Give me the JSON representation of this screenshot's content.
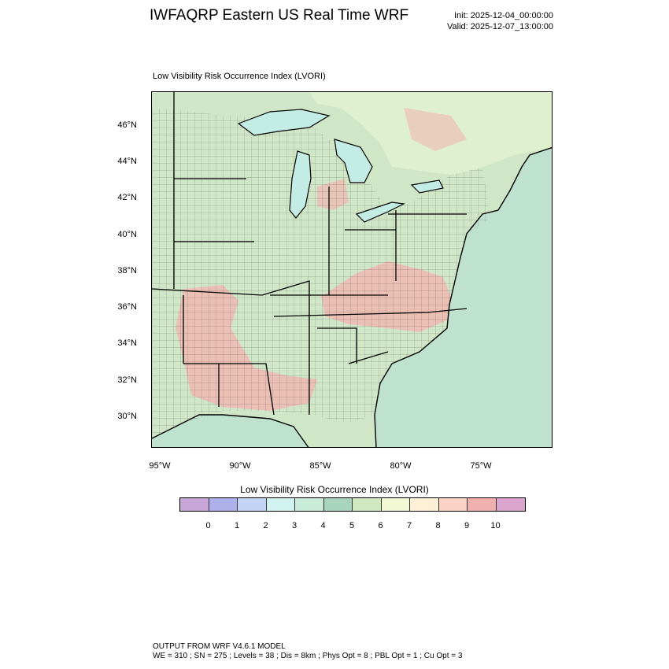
{
  "header": {
    "title": "IWFAQRP Eastern US Real Time WRF",
    "init": "Init: 2025-12-04_00:00:00",
    "valid": "Valid: 2025-12-07_13:00:00"
  },
  "panel": {
    "title": "Low Visibility Risk Occurrence Index   (LVORI)"
  },
  "map": {
    "latitude_labels": [
      "46°N",
      "44°N",
      "42°N",
      "40°N",
      "38°N",
      "36°N",
      "34°N",
      "32°N",
      "30°N"
    ],
    "longitude_labels": [
      "95°W",
      "90°W",
      "85°W",
      "80°W",
      "75°W"
    ],
    "ocean_color": "#bfe2d0",
    "land_base_color": "#cfe7c6",
    "high_risk_color": "#f0b7b0",
    "lake_color": "#c3ede4",
    "boundary_color": "#000000"
  },
  "legend": {
    "title": "Low Visibility Risk Occurrence Index  (LVORI)",
    "labels": [
      "0",
      "1",
      "2",
      "3",
      "4",
      "5",
      "6",
      "7",
      "8",
      "9",
      "10"
    ],
    "colors": [
      "#c9a6d8",
      "#aeb0ea",
      "#c4d4f5",
      "#d2f2f0",
      "#c8ecd9",
      "#a8d5bd",
      "#cfe8c2",
      "#f2f7d4",
      "#fdf0d6",
      "#fbd3c4",
      "#f0b0ae",
      "#dba4cf"
    ]
  },
  "footer": {
    "line1": "OUTPUT FROM WRF V4.6.1 MODEL",
    "line2": "WE = 310 ; SN = 275 ; Levels = 38 ; Dis = 8km ; Phys Opt = 8 ; PBL Opt = 1 ; Cu Opt = 3"
  }
}
